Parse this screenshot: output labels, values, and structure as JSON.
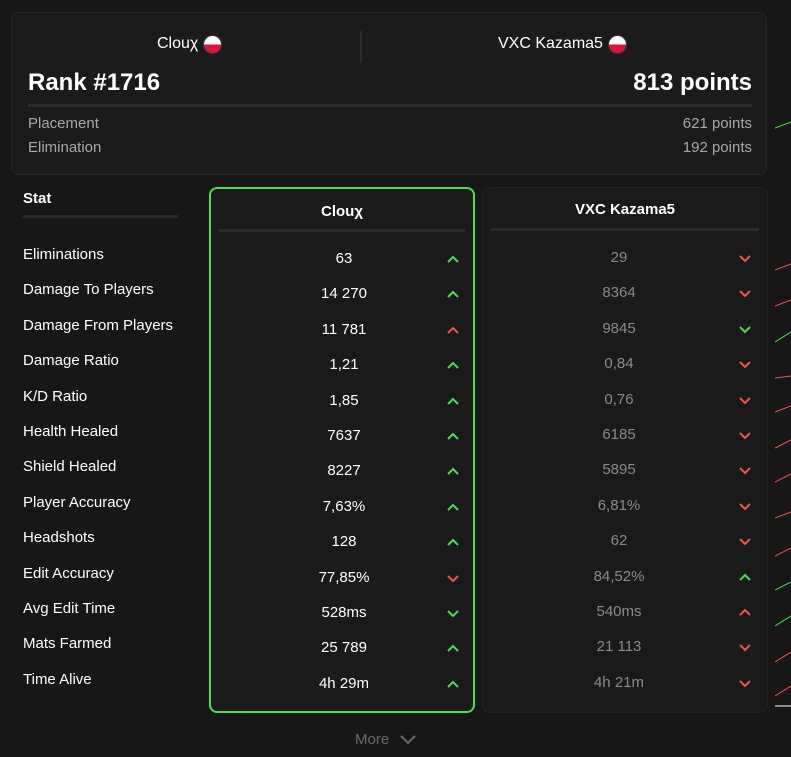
{
  "summary": {
    "player1": {
      "name": "Clouχ",
      "flag": "poland-flag-icon"
    },
    "player2": {
      "name": "VXC Kazama5",
      "flag": "poland-flag-icon"
    },
    "rank": "Rank #1716",
    "total_points": "813 points",
    "breakdown": [
      {
        "label": "Placement",
        "value": "621 points"
      },
      {
        "label": "Elimination",
        "value": "192 points"
      }
    ]
  },
  "table": {
    "stat_header": "Stat",
    "player1_header": "Clouχ",
    "player2_header": "VXC Kazama5",
    "rows": [
      {
        "stat": "Eliminations",
        "p1": "63",
        "p1_trend": "up",
        "p2": "29",
        "p2_trend": "down"
      },
      {
        "stat": "Damage To Players",
        "p1": "14 270",
        "p1_trend": "up",
        "p2": "8364",
        "p2_trend": "down"
      },
      {
        "stat": "Damage From Players",
        "p1": "11 781",
        "p1_trend": "up-red",
        "p2": "9845",
        "p2_trend": "down-green"
      },
      {
        "stat": "Damage Ratio",
        "p1": "1,21",
        "p1_trend": "up",
        "p2": "0,84",
        "p2_trend": "down"
      },
      {
        "stat": "K/D Ratio",
        "p1": "1,85",
        "p1_trend": "up",
        "p2": "0,76",
        "p2_trend": "down"
      },
      {
        "stat": "Health Healed",
        "p1": "7637",
        "p1_trend": "up",
        "p2": "6185",
        "p2_trend": "down"
      },
      {
        "stat": "Shield Healed",
        "p1": "8227",
        "p1_trend": "up",
        "p2": "5895",
        "p2_trend": "down"
      },
      {
        "stat": "Player Accuracy",
        "p1": "7,63%",
        "p1_trend": "up",
        "p2": "6,81%",
        "p2_trend": "down"
      },
      {
        "stat": "Headshots",
        "p1": "128",
        "p1_trend": "up",
        "p2": "62",
        "p2_trend": "down"
      },
      {
        "stat": "Edit Accuracy",
        "p1": "77,85%",
        "p1_trend": "down",
        "p2": "84,52%",
        "p2_trend": "up"
      },
      {
        "stat": "Avg Edit Time",
        "p1": "528ms",
        "p1_trend": "down-green",
        "p2": "540ms",
        "p2_trend": "up-red"
      },
      {
        "stat": "Mats Farmed",
        "p1": "25 789",
        "p1_trend": "up",
        "p2": "21 113",
        "p2_trend": "down"
      },
      {
        "stat": "Time Alive",
        "p1": "4h 29m",
        "p1_trend": "up",
        "p2": "4h 21m",
        "p2_trend": "down"
      }
    ]
  },
  "more_label": "More",
  "colors": {
    "accent_green": "#4ade53",
    "accent_red": "#ef5350",
    "background": "#171717"
  }
}
